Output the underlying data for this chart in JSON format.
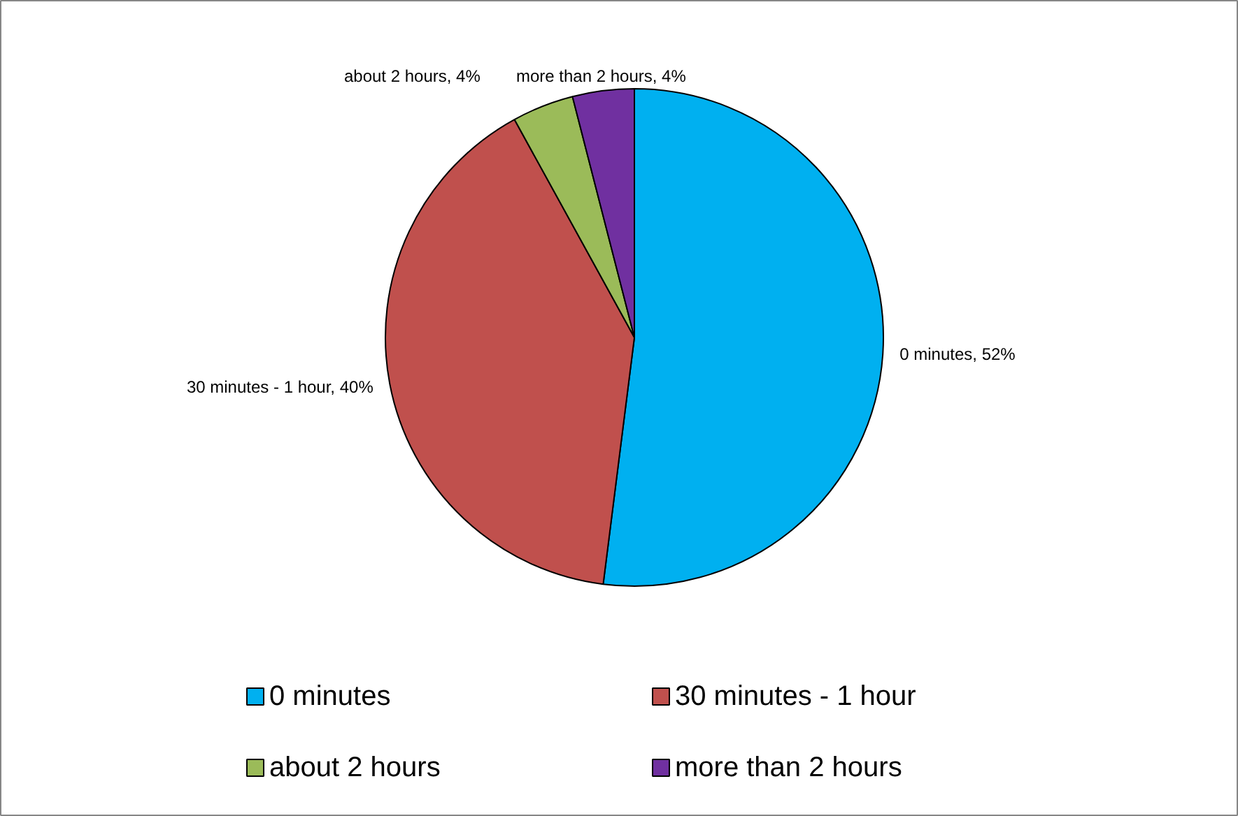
{
  "chart_data": {
    "type": "pie",
    "categories": [
      "0 minutes",
      "30 minutes - 1 hour",
      "about 2 hours",
      "more than 2 hours"
    ],
    "values": [
      52,
      40,
      4,
      4
    ],
    "colors": [
      "#00b0f0",
      "#c0504d",
      "#9bbb59",
      "#7030a0"
    ],
    "value_labels": [
      "0 minutes, 52%",
      "30 minutes - 1 hour, 40%",
      "about 2 hours, 4%",
      "more than 2 hours, 4%"
    ],
    "legend": "bottom"
  }
}
